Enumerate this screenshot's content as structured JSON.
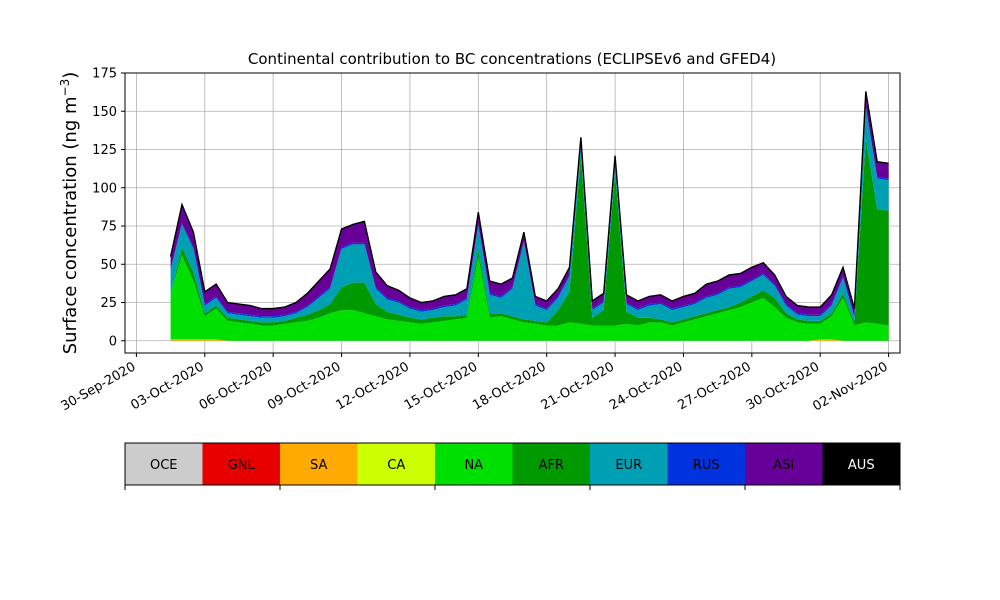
{
  "chart_data": {
    "type": "area",
    "title": "Continental contribution to BC concentrations (ECLIPSEv6 and GFED4)",
    "ylabel": "Surface concentration (ng m",
    "ylabel_exponent": "−3",
    "ylabel_close": ")",
    "xlabel": "",
    "ylim": [
      -8,
      175
    ],
    "xlim": [
      "2020-09-29T12:00",
      "2020-11-02T12:00"
    ],
    "grid": true,
    "stacked": true,
    "yticks": [
      0,
      25,
      50,
      75,
      100,
      125,
      150,
      175
    ],
    "xticks": [
      "30-Sep-2020",
      "03-Oct-2020",
      "06-Oct-2020",
      "09-Oct-2020",
      "12-Oct-2020",
      "15-Oct-2020",
      "18-Oct-2020",
      "21-Oct-2020",
      "24-Oct-2020",
      "27-Oct-2020",
      "30-Oct-2020",
      "02-Nov-2020"
    ],
    "legend": [
      {
        "name": "OCE",
        "color": "#cccccc",
        "text_color": "#000000"
      },
      {
        "name": "GNL",
        "color": "#e60000",
        "text_color": "#000000"
      },
      {
        "name": "SA",
        "color": "#ffaa00",
        "text_color": "#000000"
      },
      {
        "name": "CA",
        "color": "#ccff00",
        "text_color": "#000000"
      },
      {
        "name": "NA",
        "color": "#00e000",
        "text_color": "#000000"
      },
      {
        "name": "AFR",
        "color": "#009900",
        "text_color": "#000000"
      },
      {
        "name": "EUR",
        "color": "#00a0b4",
        "text_color": "#000000"
      },
      {
        "name": "RUS",
        "color": "#0033dd",
        "text_color": "#000000"
      },
      {
        "name": "ASI",
        "color": "#660099",
        "text_color": "#000000"
      },
      {
        "name": "AUS",
        "color": "#000000",
        "text_color": "#ffffff"
      }
    ],
    "x": [
      "2020-10-01T12:00",
      "2020-10-02T00:00",
      "2020-10-02T12:00",
      "2020-10-03T00:00",
      "2020-10-03T12:00",
      "2020-10-04T00:00",
      "2020-10-04T12:00",
      "2020-10-05T00:00",
      "2020-10-05T12:00",
      "2020-10-06T00:00",
      "2020-10-06T12:00",
      "2020-10-07T00:00",
      "2020-10-07T12:00",
      "2020-10-08T00:00",
      "2020-10-08T12:00",
      "2020-10-09T00:00",
      "2020-10-09T12:00",
      "2020-10-10T00:00",
      "2020-10-10T12:00",
      "2020-10-11T00:00",
      "2020-10-11T12:00",
      "2020-10-12T00:00",
      "2020-10-12T12:00",
      "2020-10-13T00:00",
      "2020-10-13T12:00",
      "2020-10-14T00:00",
      "2020-10-14T12:00",
      "2020-10-15T00:00",
      "2020-10-15T12:00",
      "2020-10-16T00:00",
      "2020-10-16T12:00",
      "2020-10-17T00:00",
      "2020-10-17T12:00",
      "2020-10-18T00:00",
      "2020-10-18T12:00",
      "2020-10-19T00:00",
      "2020-10-19T12:00",
      "2020-10-20T00:00",
      "2020-10-20T12:00",
      "2020-10-21T00:00",
      "2020-10-21T12:00",
      "2020-10-22T00:00",
      "2020-10-22T12:00",
      "2020-10-23T00:00",
      "2020-10-23T12:00",
      "2020-10-24T00:00",
      "2020-10-24T12:00",
      "2020-10-25T00:00",
      "2020-10-25T12:00",
      "2020-10-26T00:00",
      "2020-10-26T12:00",
      "2020-10-27T00:00",
      "2020-10-27T12:00",
      "2020-10-28T00:00",
      "2020-10-28T12:00",
      "2020-10-29T00:00",
      "2020-10-29T12:00",
      "2020-10-30T00:00",
      "2020-10-30T12:00",
      "2020-10-31T00:00",
      "2020-10-31T12:00",
      "2020-11-01T00:00",
      "2020-11-01T12:00",
      "2020-11-02T00:00"
    ],
    "series": [
      {
        "name": "OCE",
        "color": "#cccccc",
        "values": [
          0,
          0,
          0,
          0,
          0,
          0,
          0,
          0,
          0,
          0,
          0,
          0,
          0,
          0,
          0,
          0,
          0,
          0,
          0,
          0,
          0,
          0,
          0,
          0,
          0,
          0,
          0,
          0,
          0,
          0,
          0,
          0,
          0,
          0,
          0,
          0,
          0,
          0,
          0,
          0,
          0,
          0,
          0,
          0,
          0,
          0,
          0,
          0,
          0,
          0,
          0,
          0,
          0,
          0,
          0,
          0,
          0,
          0,
          0,
          0,
          0,
          0,
          0,
          0
        ]
      },
      {
        "name": "GNL",
        "color": "#e60000",
        "values": [
          0,
          0,
          0,
          0,
          0,
          0,
          0,
          0,
          0,
          0,
          0,
          0,
          0,
          0,
          0,
          0,
          0,
          0,
          0,
          0,
          0,
          0,
          0,
          0,
          0,
          0,
          0,
          0,
          0,
          0,
          0,
          0,
          0,
          0,
          0,
          0,
          0,
          0,
          0,
          0,
          0,
          0,
          0,
          0,
          0,
          0,
          0,
          0,
          0,
          0,
          0,
          0,
          0,
          0,
          0,
          0,
          0,
          0,
          0,
          0,
          0,
          0,
          0,
          0
        ]
      },
      {
        "name": "SA",
        "color": "#ffaa00",
        "values": [
          1,
          1,
          1,
          1,
          1,
          0,
          0,
          0,
          0,
          0,
          0,
          0,
          0,
          0,
          0,
          0,
          0,
          0,
          0,
          0,
          0,
          0,
          0,
          0,
          0,
          0,
          0,
          0,
          0,
          0,
          0,
          0,
          0,
          0,
          0,
          0,
          0,
          0,
          0,
          0,
          0,
          0,
          0,
          0,
          0,
          0,
          0,
          0,
          0,
          0,
          0,
          0,
          0,
          0,
          0,
          0,
          0,
          1,
          1,
          0,
          0,
          0,
          0,
          0
        ]
      },
      {
        "name": "CA",
        "color": "#ccff00",
        "values": [
          0,
          0,
          0,
          0,
          0,
          0,
          0,
          0,
          0,
          0,
          0,
          0,
          0,
          0,
          0,
          0,
          0,
          0,
          0,
          0,
          0,
          0,
          0,
          0,
          0,
          0,
          0,
          0,
          0,
          0,
          0,
          0,
          0,
          0,
          0,
          0,
          0,
          0,
          0,
          0,
          0,
          0,
          0,
          0,
          0,
          0,
          0,
          0,
          0,
          0,
          0,
          0,
          0,
          0,
          0,
          0,
          0,
          0,
          0,
          0,
          0,
          0,
          0,
          0
        ]
      },
      {
        "name": "NA",
        "color": "#00e000",
        "values": [
          30,
          55,
          38,
          15,
          20,
          13,
          12,
          11,
          10,
          10,
          11,
          12,
          13,
          15,
          18,
          20,
          20,
          18,
          16,
          14,
          13,
          12,
          11,
          12,
          13,
          14,
          15,
          55,
          15,
          16,
          14,
          12,
          11,
          10,
          10,
          12,
          11,
          10,
          10,
          10,
          11,
          10,
          12,
          12,
          10,
          12,
          14,
          16,
          18,
          20,
          22,
          25,
          28,
          22,
          15,
          12,
          11,
          10,
          15,
          28,
          10,
          12,
          11,
          10
        ]
      },
      {
        "name": "AFR",
        "color": "#009900",
        "values": [
          0,
          5,
          6,
          2,
          2,
          2,
          2,
          2,
          2,
          2,
          2,
          3,
          4,
          5,
          6,
          15,
          18,
          20,
          8,
          5,
          4,
          3,
          3,
          3,
          3,
          2,
          2,
          5,
          3,
          2,
          2,
          2,
          2,
          2,
          10,
          20,
          110,
          5,
          10,
          100,
          8,
          5,
          3,
          2,
          2,
          2,
          2,
          2,
          2,
          2,
          3,
          4,
          5,
          6,
          3,
          2,
          2,
          2,
          2,
          3,
          2,
          120,
          75,
          75
        ]
      },
      {
        "name": "EUR",
        "color": "#00a0b4",
        "values": [
          15,
          15,
          15,
          5,
          5,
          3,
          3,
          3,
          3,
          3,
          3,
          3,
          5,
          8,
          10,
          25,
          25,
          25,
          10,
          8,
          8,
          6,
          5,
          5,
          6,
          7,
          10,
          15,
          12,
          10,
          18,
          50,
          10,
          8,
          8,
          10,
          5,
          5,
          5,
          5,
          5,
          5,
          8,
          10,
          8,
          8,
          8,
          10,
          10,
          12,
          10,
          10,
          10,
          8,
          5,
          3,
          3,
          3,
          5,
          10,
          3,
          20,
          20,
          20
        ]
      },
      {
        "name": "RUS",
        "color": "#0033dd",
        "values": [
          1,
          1,
          1,
          1,
          1,
          1,
          1,
          1,
          1,
          1,
          1,
          1,
          1,
          1,
          1,
          1,
          1,
          1,
          1,
          1,
          1,
          1,
          1,
          1,
          1,
          1,
          1,
          1,
          1,
          1,
          1,
          1,
          1,
          1,
          1,
          1,
          1,
          1,
          1,
          1,
          1,
          1,
          1,
          1,
          1,
          1,
          1,
          1,
          1,
          1,
          1,
          1,
          1,
          1,
          1,
          1,
          1,
          1,
          1,
          1,
          1,
          1,
          1,
          1
        ]
      },
      {
        "name": "ASI",
        "color": "#660099",
        "values": [
          8,
          12,
          10,
          8,
          8,
          6,
          6,
          6,
          5,
          5,
          5,
          6,
          8,
          10,
          12,
          12,
          12,
          14,
          10,
          8,
          7,
          6,
          5,
          5,
          6,
          6,
          6,
          8,
          8,
          8,
          6,
          6,
          5,
          5,
          5,
          5,
          6,
          5,
          5,
          5,
          5,
          5,
          5,
          5,
          5,
          6,
          6,
          8,
          8,
          8,
          8,
          8,
          7,
          6,
          5,
          5,
          5,
          5,
          6,
          6,
          5,
          10,
          10,
          10
        ]
      },
      {
        "name": "AUS",
        "color": "#000000",
        "values": [
          0,
          0,
          0,
          0,
          0,
          0,
          0,
          0,
          0,
          0,
          0,
          0,
          0,
          0,
          0,
          0,
          0,
          0,
          0,
          0,
          0,
          0,
          0,
          0,
          0,
          0,
          0,
          0,
          0,
          0,
          0,
          0,
          0,
          0,
          0,
          0,
          0,
          0,
          0,
          0,
          0,
          0,
          0,
          0,
          0,
          0,
          0,
          0,
          0,
          0,
          0,
          0,
          0,
          0,
          0,
          0,
          0,
          0,
          0,
          0,
          0,
          0,
          0,
          0
        ]
      }
    ]
  }
}
